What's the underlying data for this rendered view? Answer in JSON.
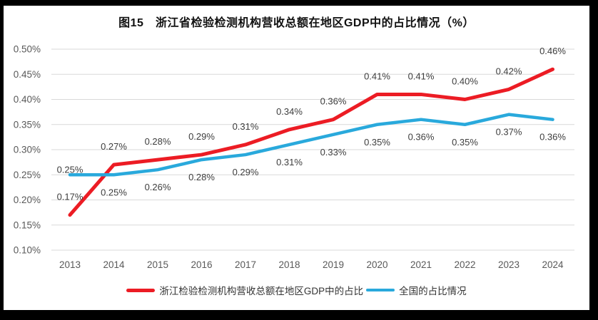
{
  "chart_data": {
    "type": "line",
    "title": "图15　浙江省检验检测机构营收总额在地区GDP中的占比情况（%）",
    "categories": [
      "2013",
      "2014",
      "2015",
      "2016",
      "2017",
      "2018",
      "2019",
      "2020",
      "2021",
      "2022",
      "2023",
      "2024"
    ],
    "series": [
      {
        "name": "浙江检验检测机构营收总额在地区GDP中的占比",
        "color": "#ec1c24",
        "values": [
          0.17,
          0.27,
          0.28,
          0.29,
          0.31,
          0.34,
          0.36,
          0.41,
          0.41,
          0.4,
          0.42,
          0.46
        ],
        "labels": [
          "0.17%",
          "0.27%",
          "0.28%",
          "0.29%",
          "0.31%",
          "0.34%",
          "0.36%",
          "0.41%",
          "0.41%",
          "0.40%",
          "0.42%",
          "0.46%"
        ],
        "label_position": "above"
      },
      {
        "name": "全国的占比情况",
        "color": "#29a9dc",
        "values": [
          0.25,
          0.25,
          0.26,
          0.28,
          0.29,
          0.31,
          0.33,
          0.35,
          0.36,
          0.35,
          0.37,
          0.36
        ],
        "labels": [
          "0.25%",
          "0.25%",
          "0.26%",
          "0.28%",
          "0.29%",
          "0.31%",
          "0.33%",
          "0.35%",
          "0.36%",
          "0.35%",
          "0.37%",
          "0.36%"
        ],
        "label_position": "below",
        "label_position_overrides": {
          "0": "above"
        }
      }
    ],
    "y_axis": {
      "ticks": [
        "0.50%",
        "0.45%",
        "0.40%",
        "0.35%",
        "0.30%",
        "0.25%",
        "0.20%",
        "0.15%",
        "0.10%"
      ],
      "max": 0.5,
      "min": 0.1,
      "step": 0.05
    },
    "x_axis_label": "",
    "grid": true,
    "legend_position": "bottom",
    "colors": {
      "background": "#ffffff",
      "outer_border": "#000000",
      "gridline": "#d9d9d9",
      "tick_text": "#595959",
      "data_label_text": "#3d3d3d",
      "title_text": "#111111"
    }
  }
}
